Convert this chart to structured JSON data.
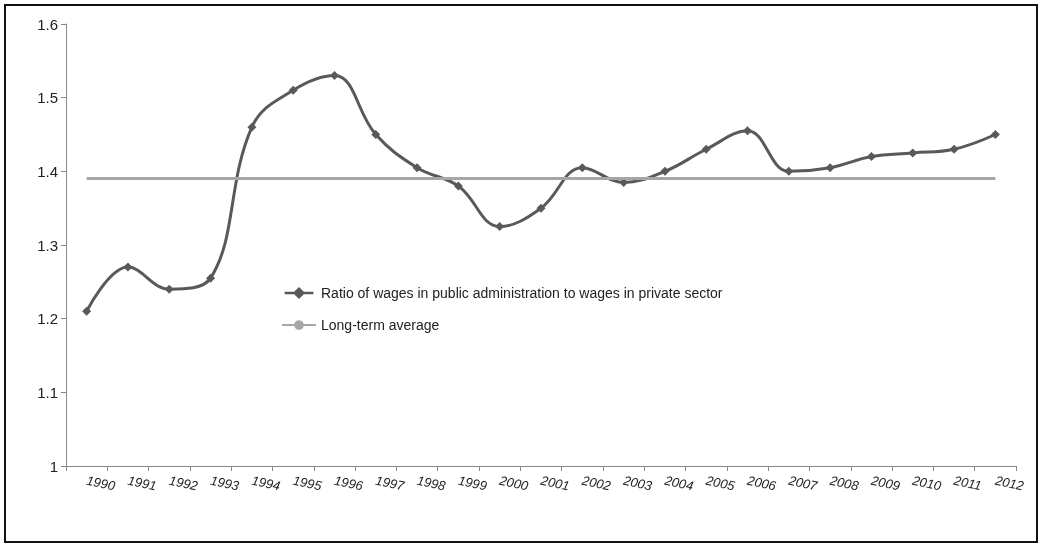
{
  "chart_data": {
    "type": "line",
    "categories": [
      "1990",
      "1991",
      "1992",
      "1993",
      "1994",
      "1995",
      "1996",
      "1997",
      "1998",
      "1999",
      "2000",
      "2001",
      "2002",
      "2003",
      "2004",
      "2005",
      "2006",
      "2007",
      "2008",
      "2009",
      "2010",
      "2011",
      "2012"
    ],
    "series": [
      {
        "name": "Ratio of wages in public administration to wages in private sector",
        "color": "#595959",
        "values": [
          1.21,
          1.27,
          1.24,
          1.255,
          1.46,
          1.51,
          1.53,
          1.45,
          1.405,
          1.38,
          1.325,
          1.35,
          1.405,
          1.385,
          1.4,
          1.43,
          1.455,
          1.4,
          1.405,
          1.42,
          1.425,
          1.43,
          1.45
        ]
      }
    ],
    "ref_lines": [
      {
        "axis": "y",
        "value": 1.39,
        "label": "Long-term average",
        "color": "#a6a6a6"
      }
    ],
    "ylim": [
      1,
      1.6
    ],
    "yticks": [
      1,
      1.1,
      1.2,
      1.3,
      1.4,
      1.5,
      1.6
    ],
    "grid": false,
    "legend": "center",
    "marker": "diamond",
    "line_style": "solid"
  }
}
